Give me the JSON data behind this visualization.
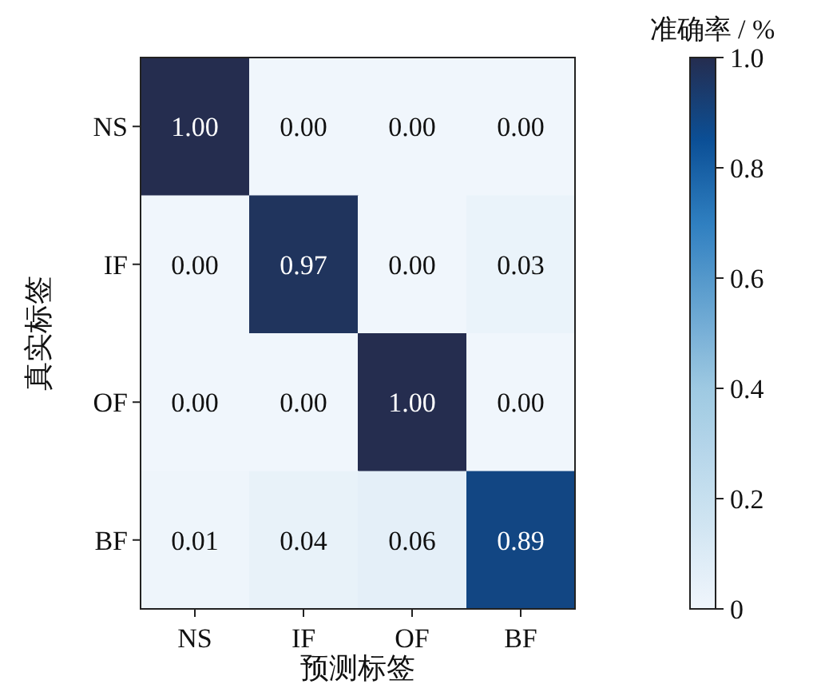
{
  "chart_data": {
    "type": "heatmap",
    "xlabel": "预测标签",
    "ylabel": "真实标签",
    "clabel": "准确率 / %",
    "categories": [
      "NS",
      "IF",
      "OF",
      "BF"
    ],
    "y_categories": [
      "NS",
      "IF",
      "OF",
      "BF"
    ],
    "cells": [
      [
        1.0,
        0.0,
        0.0,
        0.0
      ],
      [
        0.0,
        0.97,
        0.0,
        0.03
      ],
      [
        0.0,
        0.0,
        1.0,
        0.0
      ],
      [
        0.01,
        0.04,
        0.06,
        0.89
      ]
    ],
    "cell_labels": [
      [
        "1.00",
        "0.00",
        "0.00",
        "0.00"
      ],
      [
        "0.00",
        "0.97",
        "0.00",
        "0.03"
      ],
      [
        "0.00",
        "0.00",
        "1.00",
        "0.00"
      ],
      [
        "0.01",
        "0.04",
        "0.06",
        "0.89"
      ]
    ],
    "clim": [
      0,
      1
    ],
    "cticks": [
      0,
      0.2,
      0.4,
      0.6,
      0.8,
      {
        "value": 1,
        "label": "1.0"
      }
    ]
  }
}
